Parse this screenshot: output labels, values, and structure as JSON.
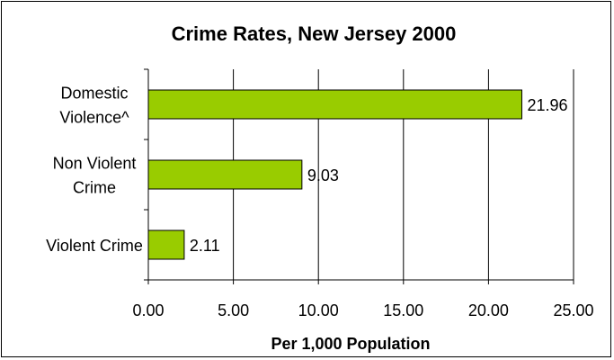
{
  "chart_data": {
    "type": "bar",
    "orientation": "horizontal",
    "title": "Crime Rates, New Jersey 2000",
    "xlabel": "Per 1,000 Population",
    "ylabel": "",
    "categories": [
      [
        "Domestic",
        "Violence^"
      ],
      [
        "Non Violent",
        "Crime"
      ],
      [
        "Violent Crime"
      ]
    ],
    "values": [
      21.96,
      9.03,
      2.11
    ],
    "data_labels": [
      "21.96",
      "9.03",
      "2.11"
    ],
    "xlim": [
      0,
      25
    ],
    "x_ticks": [
      0,
      5,
      10,
      15,
      20,
      25
    ],
    "x_tick_labels": [
      "0.00",
      "5.00",
      "10.00",
      "15.00",
      "20.00",
      "25.00"
    ],
    "grid": "vertical",
    "legend": "none",
    "colors": {
      "bar_fill": "#99CC00",
      "bar_stroke": "#000000",
      "grid": "#000000",
      "background": "#FFFFFF"
    }
  }
}
